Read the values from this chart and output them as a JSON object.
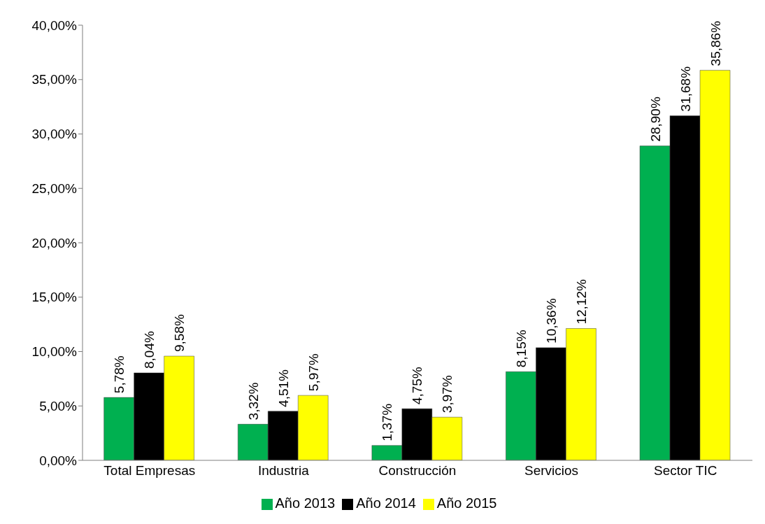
{
  "chart_data": {
    "type": "bar",
    "categories": [
      "Total Empresas",
      "Industria",
      "Construcción",
      "Servicios",
      "Sector TIC"
    ],
    "series": [
      {
        "name": "Año 2013",
        "color": "#00b050",
        "values": [
          5.78,
          3.32,
          1.37,
          8.15,
          28.9
        ],
        "value_labels": [
          "5,78%",
          "3,32%",
          "1,37%",
          "8,15%",
          "28,90%"
        ]
      },
      {
        "name": "Año 2014",
        "color": "#000000",
        "values": [
          8.04,
          4.51,
          4.75,
          10.36,
          31.68
        ],
        "value_labels": [
          "8,04%",
          "4,51%",
          "4,75%",
          "10,36%",
          "31,68%"
        ]
      },
      {
        "name": "Año 2015",
        "color": "#ffff00",
        "values": [
          9.58,
          5.97,
          3.97,
          12.12,
          35.86
        ],
        "value_labels": [
          "9,58%",
          "5,97%",
          "3,97%",
          "12,12%",
          "35,86%"
        ]
      }
    ],
    "ylim": [
      0,
      40
    ],
    "yticks": [
      {
        "value": 0,
        "label": "0,00%"
      },
      {
        "value": 5,
        "label": "5,00%"
      },
      {
        "value": 10,
        "label": "10,00%"
      },
      {
        "value": 15,
        "label": "15,00%"
      },
      {
        "value": 20,
        "label": "20,00%"
      },
      {
        "value": 25,
        "label": "25,00%"
      },
      {
        "value": 30,
        "label": "30,00%"
      },
      {
        "value": 35,
        "label": "35,00%"
      },
      {
        "value": 40,
        "label": "40,00%"
      }
    ],
    "grid": false,
    "legend": "bottom"
  }
}
